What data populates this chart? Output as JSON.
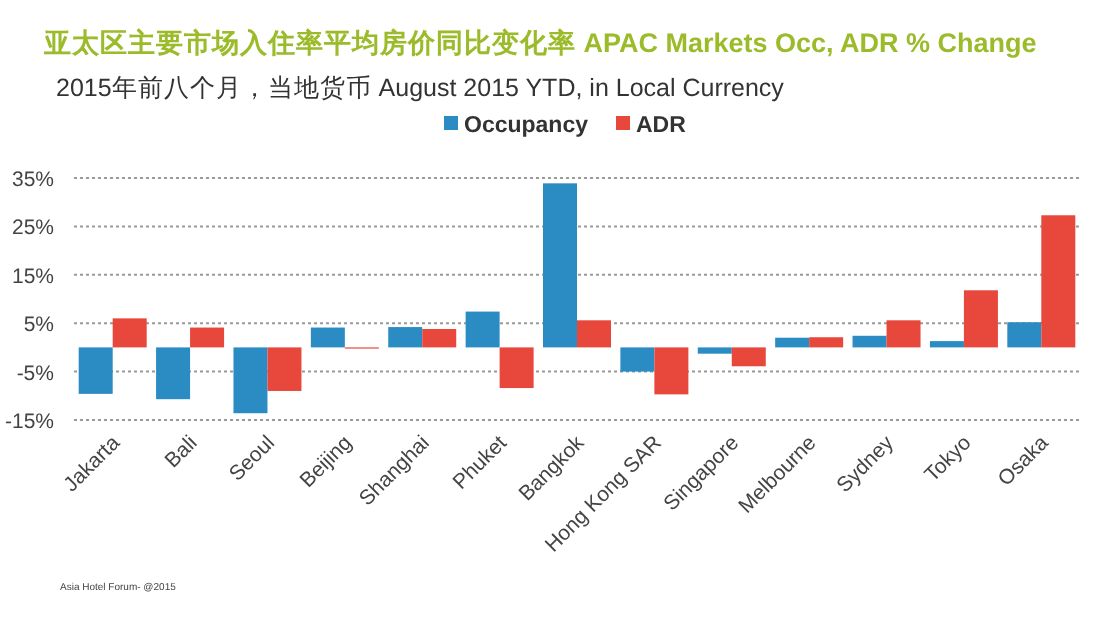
{
  "chart_data": {
    "type": "bar",
    "title": "亚太区主要市场入住率平均房价同比变化率 APAC Markets Occ, ADR % Change",
    "subtitle": "2015年前八个月，当地货币 August 2015 YTD, in Local Currency",
    "categories": [
      "Jakarta",
      "Bali",
      "Seoul",
      "Beijing",
      "Shanghai",
      "Phuket",
      "Bangkok",
      "Hong Kong SAR",
      "Singapore",
      "Melbourne",
      "Sydney",
      "Tokyo",
      "Osaka"
    ],
    "series": [
      {
        "name": "Occupancy",
        "color": "#2b8cc4",
        "values": [
          -9.6,
          -10.7,
          -13.6,
          4.1,
          4.2,
          7.4,
          33.9,
          -5.0,
          -1.3,
          2.0,
          2.4,
          1.3,
          5.2
        ]
      },
      {
        "name": "ADR",
        "color": "#e8483b",
        "values": [
          6.0,
          4.1,
          -9.0,
          -0.2,
          3.8,
          -8.4,
          5.6,
          -9.7,
          -3.9,
          2.1,
          5.6,
          11.8,
          27.3
        ]
      }
    ],
    "ylim": [
      -15,
      35
    ],
    "yticks": [
      {
        "value": -15,
        "label": "-15%"
      },
      {
        "value": -5,
        "label": "-5%"
      },
      {
        "value": 5,
        "label": "5%"
      },
      {
        "value": 15,
        "label": "15%"
      },
      {
        "value": 25,
        "label": "25%"
      },
      {
        "value": 35,
        "label": "35%"
      }
    ],
    "grid": "y",
    "legend": "top",
    "annotations": [
      "Asia Hotel Forum- @2015"
    ]
  }
}
